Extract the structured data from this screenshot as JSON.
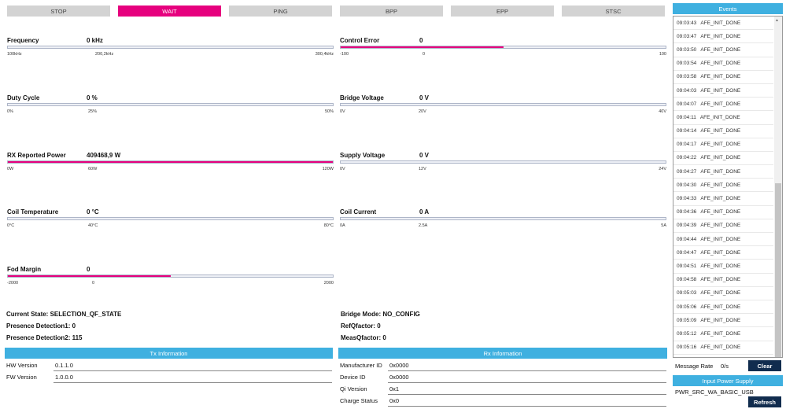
{
  "modes": [
    "STOP",
    "WAIT",
    "PING",
    "BPP",
    "EPP",
    "STSC"
  ],
  "active_mode": "WAIT",
  "metrics": {
    "frequency": {
      "label": "Frequency",
      "value": "0 kHz",
      "ticks": [
        "100kHz",
        "200,2kHz",
        "300,4kHz"
      ],
      "fill": 0
    },
    "control_error": {
      "label": "Control Error",
      "value": "0",
      "ticks": [
        "-100",
        "0",
        "100"
      ],
      "fill": 0.5
    },
    "duty_cycle": {
      "label": "Duty Cycle",
      "value": "0 %",
      "ticks": [
        "0%",
        "25%",
        "50%"
      ],
      "fill": 0
    },
    "bridge_voltage": {
      "label": "Bridge Voltage",
      "value": "0 V",
      "ticks": [
        "0V",
        "20V",
        "40V"
      ],
      "fill": 0
    },
    "rx_reported_power": {
      "label": "RX Reported Power",
      "value": "409468,9 W",
      "ticks": [
        "0W",
        "60W",
        "120W"
      ],
      "fill": 1.0
    },
    "supply_voltage": {
      "label": "Supply Voltage",
      "value": "0 V",
      "ticks": [
        "0V",
        "12V",
        "24V"
      ],
      "fill": 0
    },
    "coil_temperature": {
      "label": "Coil Temperature",
      "value": "0 °C",
      "ticks": [
        "0°C",
        "40°C",
        "80°C"
      ],
      "fill": 0
    },
    "coil_current": {
      "label": "Coil Current",
      "value": "0 A",
      "ticks": [
        "0A",
        "2.5A",
        "5A"
      ],
      "fill": 0
    },
    "fod_margin": {
      "label": "Fod Margin",
      "value": "0",
      "ticks": [
        "-2000",
        "0",
        "2000"
      ],
      "fill": 0.5
    }
  },
  "status": {
    "current_state": "Current State:  SELECTION_QF_STATE",
    "presence1": "Presence Detection1:  0",
    "presence2": "Presence Detection2:  115",
    "bridge_mode": "Bridge Mode:  NO_CONFIG",
    "ref_qfactor": "RefQfactor:  0",
    "meas_qfactor": "MeasQfactor:  0"
  },
  "tx_info": {
    "title": "Tx Information",
    "rows": [
      {
        "key": "HW Version",
        "value": "0.1.1.0"
      },
      {
        "key": "FW Version",
        "value": "1.0.0.0"
      }
    ]
  },
  "rx_info": {
    "title": "Rx Information",
    "rows": [
      {
        "key": "Manufacturer ID",
        "value": "0x0000"
      },
      {
        "key": "Device ID",
        "value": "0x0000"
      },
      {
        "key": "Qi Version",
        "value": "0x1"
      },
      {
        "key": "Charge Status",
        "value": "0x0"
      }
    ]
  },
  "events": {
    "title": "Events",
    "items": [
      {
        "time": "09:03:43",
        "text": "AFE_INIT_DONE"
      },
      {
        "time": "09:03:47",
        "text": "AFE_INIT_DONE"
      },
      {
        "time": "09:03:50",
        "text": "AFE_INIT_DONE"
      },
      {
        "time": "09:03:54",
        "text": "AFE_INIT_DONE"
      },
      {
        "time": "09:03:58",
        "text": "AFE_INIT_DONE"
      },
      {
        "time": "09:04:03",
        "text": "AFE_INIT_DONE"
      },
      {
        "time": "09:04:07",
        "text": "AFE_INIT_DONE"
      },
      {
        "time": "09:04:11",
        "text": "AFE_INIT_DONE"
      },
      {
        "time": "09:04:14",
        "text": "AFE_INIT_DONE"
      },
      {
        "time": "09:04:17",
        "text": "AFE_INIT_DONE"
      },
      {
        "time": "09:04:22",
        "text": "AFE_INIT_DONE"
      },
      {
        "time": "09:04:27",
        "text": "AFE_INIT_DONE"
      },
      {
        "time": "09:04:30",
        "text": "AFE_INIT_DONE"
      },
      {
        "time": "09:04:33",
        "text": "AFE_INIT_DONE"
      },
      {
        "time": "09:04:36",
        "text": "AFE_INIT_DONE"
      },
      {
        "time": "09:04:39",
        "text": "AFE_INIT_DONE"
      },
      {
        "time": "09:04:44",
        "text": "AFE_INIT_DONE"
      },
      {
        "time": "09:04:47",
        "text": "AFE_INIT_DONE"
      },
      {
        "time": "09:04:51",
        "text": "AFE_INIT_DONE"
      },
      {
        "time": "09:04:58",
        "text": "AFE_INIT_DONE"
      },
      {
        "time": "09:05:03",
        "text": "AFE_INIT_DONE"
      },
      {
        "time": "09:05:06",
        "text": "AFE_INIT_DONE"
      },
      {
        "time": "09:05:09",
        "text": "AFE_INIT_DONE"
      },
      {
        "time": "09:05:12",
        "text": "AFE_INIT_DONE"
      },
      {
        "time": "09:05:16",
        "text": "AFE_INIT_DONE"
      }
    ],
    "message_rate_label": "Message Rate",
    "message_rate_value": "0/s",
    "clear_label": "Clear"
  },
  "power_supply": {
    "title": "Input Power Supply",
    "value": "PWR_SRC_WA_BASIC_USB",
    "refresh_label": "Refresh"
  },
  "colors": {
    "accent": "#e6007e",
    "header": "#3fb0e0",
    "button_dark": "#112c4e",
    "button_grey": "#d3d3d3"
  }
}
